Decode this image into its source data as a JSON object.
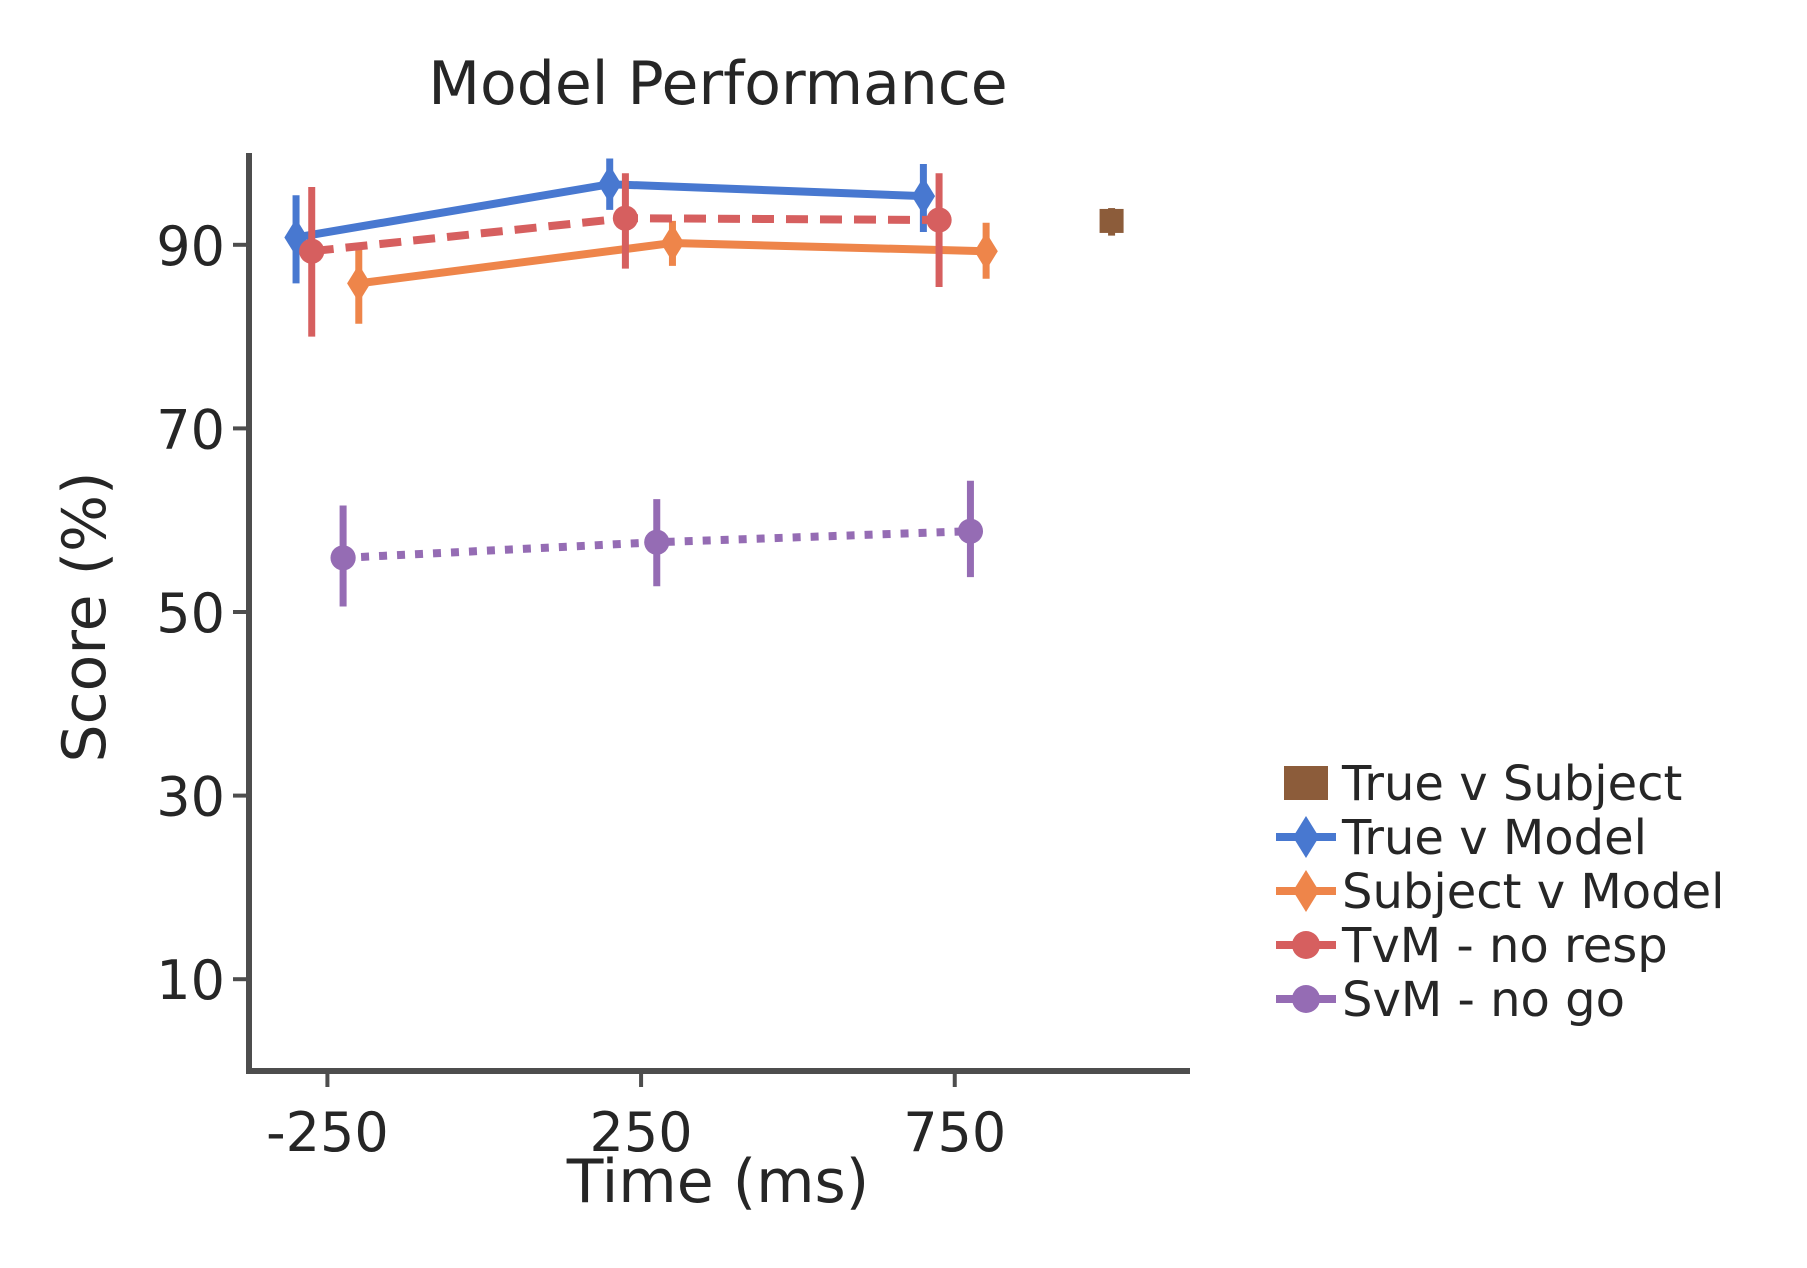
{
  "chart_data": {
    "type": "line",
    "title": "Model Performance",
    "xlabel": "Time (ms)",
    "ylabel": "Score (%)",
    "xlim": [
      -375,
      1125
    ],
    "ylim": [
      0,
      100
    ],
    "xticks": [
      -250,
      250,
      750
    ],
    "xtick_labels": [
      "-250",
      "250",
      "750"
    ],
    "yticks": [
      10,
      30,
      50,
      70,
      90
    ],
    "ytick_labels": [
      "10",
      "30",
      "50",
      "70",
      "90"
    ],
    "grid": false,
    "legend_position": "right",
    "series": [
      {
        "name": "True v Subject",
        "color": "#8c5c3a",
        "marker": "square",
        "linestyle": "none",
        "points": [
          {
            "x": 1000,
            "y": 92.6,
            "lo": 91.0,
            "hi": 94.0
          }
        ]
      },
      {
        "name": "True v Model",
        "color": "#4878d0",
        "marker": "diamond",
        "linestyle": "solid",
        "points": [
          {
            "x": -300,
            "y": 90.8,
            "lo": 85.8,
            "hi": 95.4
          },
          {
            "x": 200,
            "y": 96.6,
            "lo": 93.8,
            "hi": 99.4
          },
          {
            "x": 700,
            "y": 95.3,
            "lo": 91.4,
            "hi": 98.8
          }
        ]
      },
      {
        "name": "Subject v Model",
        "color": "#ee854a",
        "marker": "diamond",
        "linestyle": "solid",
        "points": [
          {
            "x": -200,
            "y": 85.8,
            "lo": 81.4,
            "hi": 90.2
          },
          {
            "x": 300,
            "y": 90.2,
            "lo": 87.7,
            "hi": 92.6
          },
          {
            "x": 800,
            "y": 89.3,
            "lo": 86.3,
            "hi": 92.4
          }
        ]
      },
      {
        "name": "TvM - no resp",
        "color": "#d65f5f",
        "marker": "circle",
        "linestyle": "dashed",
        "points": [
          {
            "x": -275,
            "y": 89.3,
            "lo": 80.0,
            "hi": 96.3
          },
          {
            "x": 225,
            "y": 92.9,
            "lo": 87.4,
            "hi": 97.8
          },
          {
            "x": 725,
            "y": 92.7,
            "lo": 85.4,
            "hi": 97.8
          }
        ]
      },
      {
        "name": "SvM - no go",
        "color": "#956cb4",
        "marker": "circle",
        "linestyle": "dotted",
        "points": [
          {
            "x": -225,
            "y": 55.9,
            "lo": 50.6,
            "hi": 61.6
          },
          {
            "x": 275,
            "y": 57.6,
            "lo": 52.8,
            "hi": 62.3
          },
          {
            "x": 775,
            "y": 58.8,
            "lo": 53.8,
            "hi": 64.3
          }
        ]
      }
    ]
  }
}
